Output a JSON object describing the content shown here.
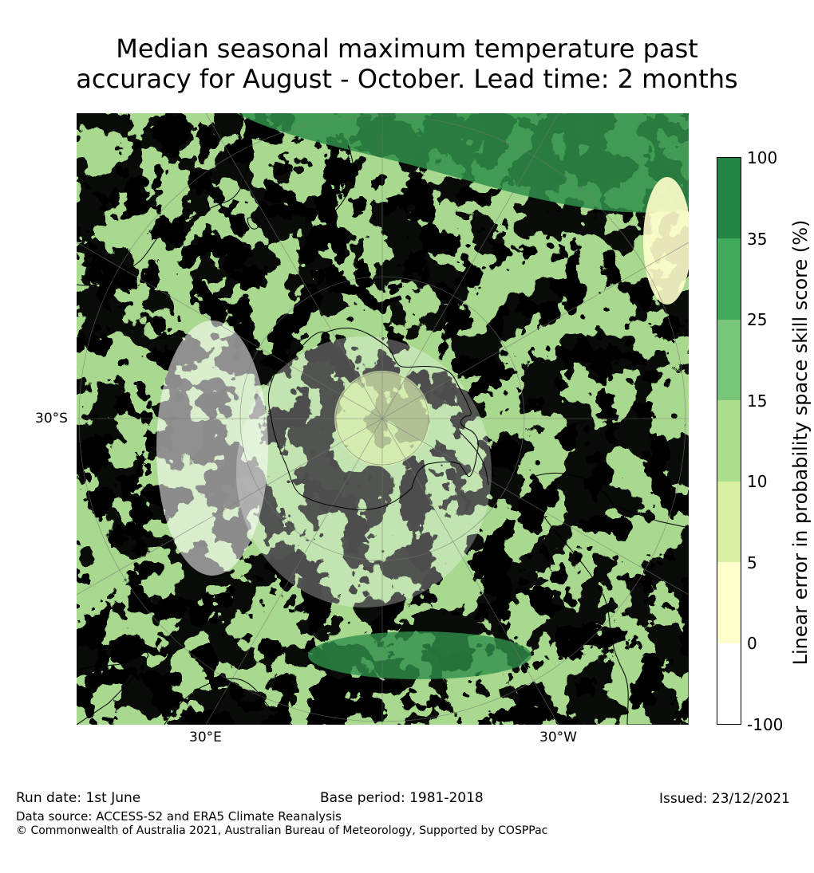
{
  "title": {
    "line1": "Median seasonal maximum temperature past",
    "line2": "accuracy for August - October. Lead time: 2 months"
  },
  "map": {
    "projection": "south polar stereographic",
    "lat_label": "30°S",
    "lon_labels": [
      "30°E",
      "30°W"
    ]
  },
  "colorbar": {
    "label": "Linear error in probability space skill score (%)",
    "ticks": [
      "100",
      "35",
      "25",
      "15",
      "10",
      "5",
      "0",
      "-100"
    ],
    "colors": [
      "#238443",
      "#41ab5d",
      "#78c679",
      "#addd8e",
      "#d9f0a3",
      "#ffffcc",
      "#ffffff"
    ]
  },
  "footer": {
    "run_date": "Run date: 1st June",
    "base_period": "Base period: 1981-2018",
    "issued": "Issued: 23/12/2021",
    "data_source": "Data source: ACCESS-S2 and ERA5 Climate Reanalysis",
    "copyright": "© Commonwealth of Australia 2021, Australian Bureau of Meteorology, Supported by COSPPac"
  }
}
